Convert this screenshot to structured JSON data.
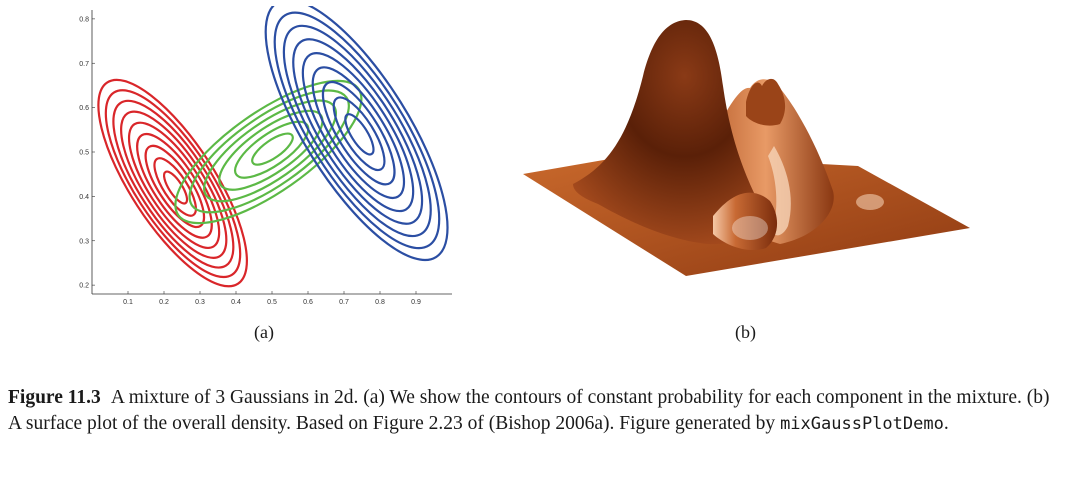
{
  "panels": {
    "a_label": "(a)",
    "b_label": "(b)"
  },
  "caption": {
    "figure_number": "Figure 11.3",
    "text_part1": "A mixture of 3 Gaussians in 2d. (a) We show the contours of constant probability for each component in the mixture. (b) A surface plot of the overall density. Based on Figure 2.23 of (Bishop 2006a). Figure generated by ",
    "code": "mixGaussPlotDemo",
    "text_part2": "."
  },
  "colors": {
    "red": "#d9262a",
    "green": "#5cb946",
    "blue": "#2b4ea3",
    "surface": "#a8471c"
  },
  "chart_data": [
    {
      "type": "contour",
      "x_ticks": [
        "0.1",
        "0.2",
        "0.3",
        "0.4",
        "0.5",
        "0.6",
        "0.7",
        "0.8",
        "0.9"
      ],
      "y_ticks": [
        "0.2",
        "0.3",
        "0.4",
        "0.5",
        "0.6",
        "0.7",
        "0.8"
      ],
      "xlim": [
        0,
        1
      ],
      "ylim": [
        0.18,
        0.82
      ],
      "series": [
        {
          "color": "red",
          "mean": [
            0.22,
            0.45
          ],
          "levels": 9
        },
        {
          "color": "green",
          "mean": [
            0.5,
            0.5
          ],
          "levels": 6
        },
        {
          "color": "blue",
          "mean": [
            0.78,
            0.55
          ],
          "levels": 9
        }
      ]
    },
    {
      "type": "surface"
    }
  ]
}
